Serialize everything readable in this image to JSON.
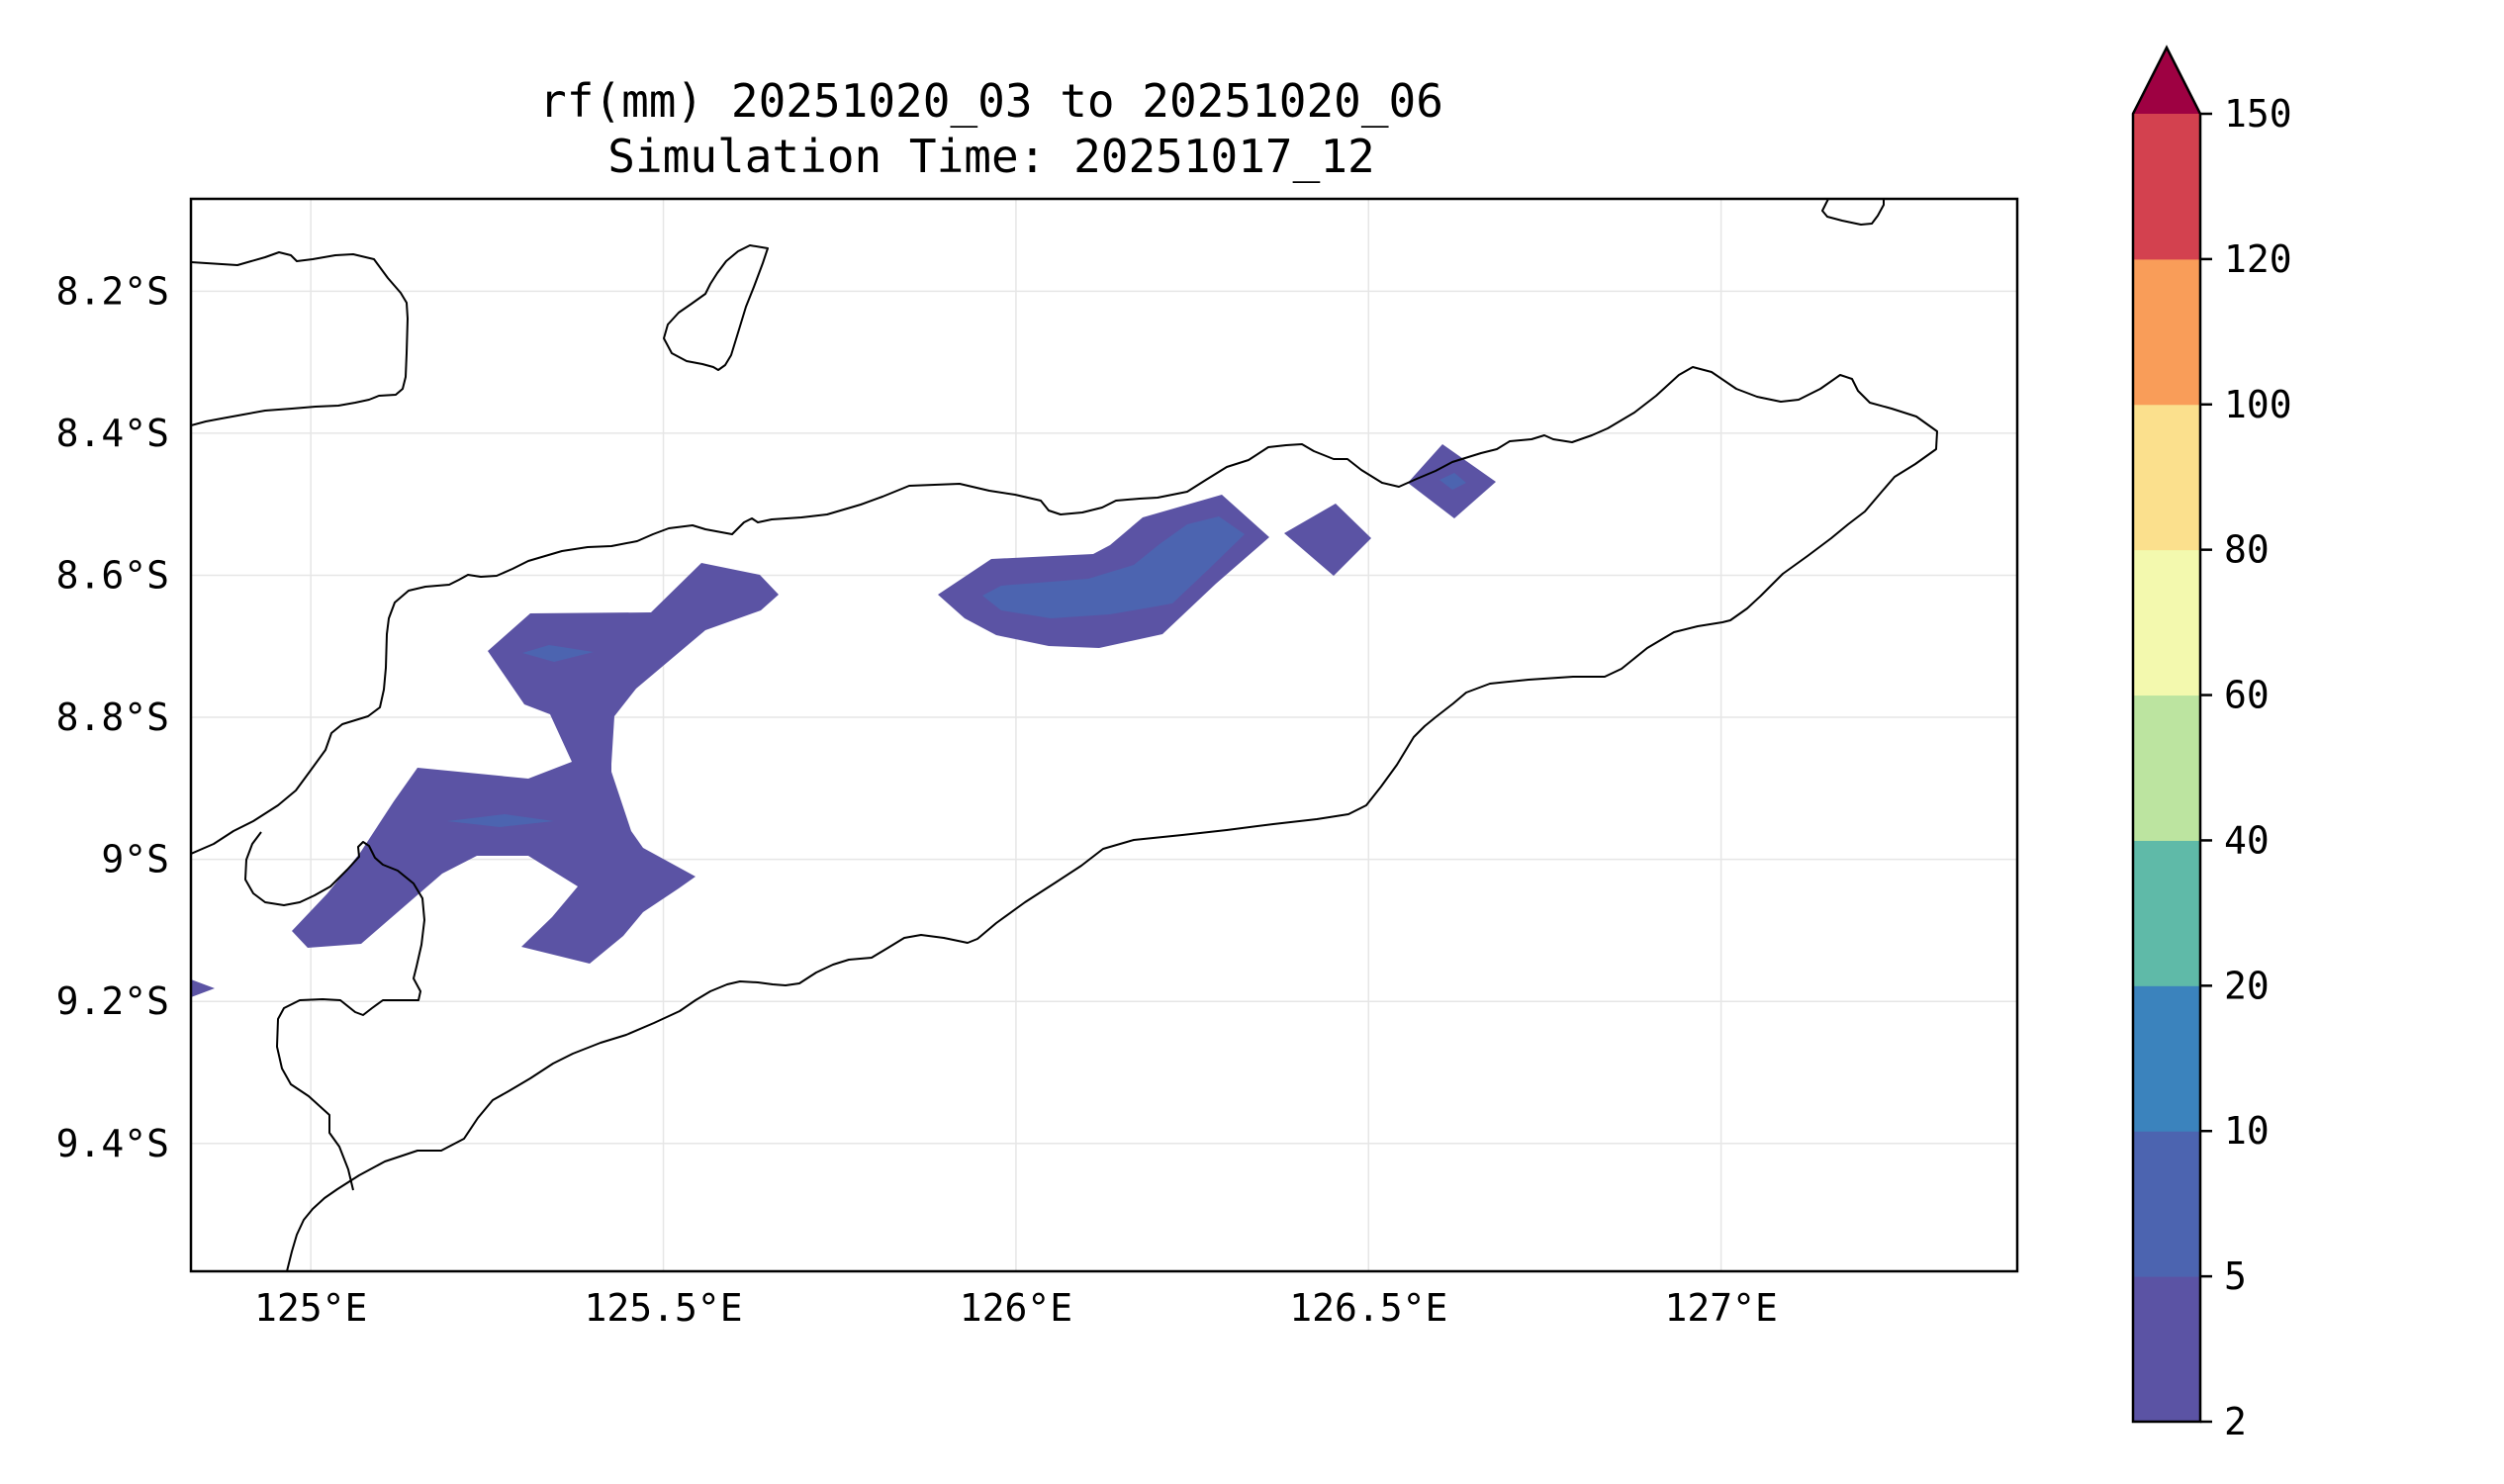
{
  "title": {
    "line1": "rf(mm) 20251020_03 to 20251020_06",
    "line2": "Simulation Time: 20251017_12"
  },
  "map": {
    "lon_range": [
      124.83,
      127.42
    ],
    "lat_range": [
      -9.58,
      -8.07
    ],
    "x_ticks": [
      {
        "value": 125.0,
        "label": "125°E"
      },
      {
        "value": 125.5,
        "label": "125.5°E"
      },
      {
        "value": 126.0,
        "label": "126°E"
      },
      {
        "value": 126.5,
        "label": "126.5°E"
      },
      {
        "value": 127.0,
        "label": "127°E"
      }
    ],
    "y_ticks": [
      {
        "value": -8.2,
        "label": "8.2°S"
      },
      {
        "value": -8.4,
        "label": "8.4°S"
      },
      {
        "value": -8.6,
        "label": "8.6°S"
      },
      {
        "value": -8.8,
        "label": "8.8°S"
      },
      {
        "value": -9.0,
        "label": "9°S"
      },
      {
        "value": -9.2,
        "label": "9.2°S"
      },
      {
        "value": -9.4,
        "label": "9.4°S"
      }
    ],
    "grid": true,
    "coastline_color": "#000000",
    "rain_regions": [
      {
        "level_range": [
          2,
          5
        ],
        "color": "#5b53a4",
        "description_lon_lat": "central-west Timor cluster"
      },
      {
        "level_range": [
          5,
          10
        ],
        "color": "#4c64b0"
      }
    ]
  },
  "colorbar": {
    "levels": [
      2,
      5,
      10,
      20,
      40,
      60,
      80,
      100,
      120,
      150
    ],
    "labels": [
      "2",
      "5",
      "10",
      "20",
      "40",
      "60",
      "80",
      "100",
      "120",
      "150"
    ],
    "colors": [
      "#5b53a4",
      "#4c64b0",
      "#3b83bd",
      "#5fbaa8",
      "#bce4a0",
      "#f3f9ae",
      "#fbe08d",
      "#f99d59",
      "#d3414f"
    ],
    "extend_color": "#9e0142",
    "extend": "max"
  }
}
